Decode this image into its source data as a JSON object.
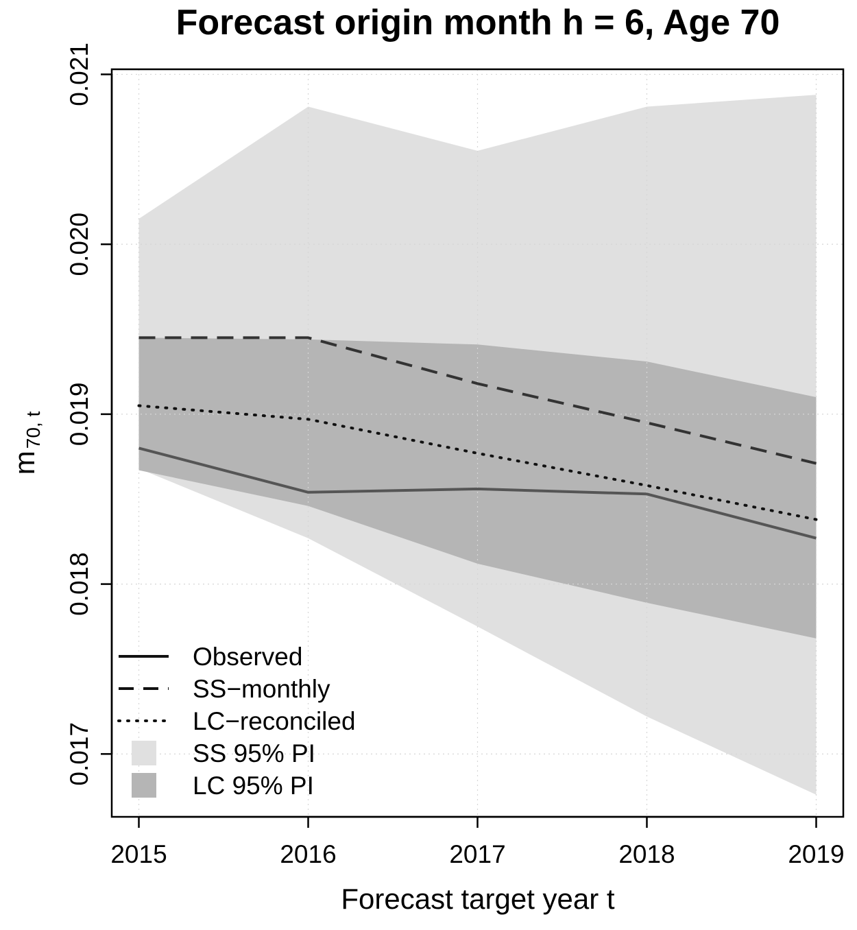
{
  "chart_data": {
    "type": "line",
    "title": "Forecast origin month h = 6, Age 70",
    "xlabel": "Forecast target year t",
    "ylabel": {
      "main": "m",
      "subscript": "70, t"
    },
    "x": [
      2015,
      2016,
      2017,
      2018,
      2019
    ],
    "x_tick_labels": [
      "2015",
      "2016",
      "2017",
      "2018",
      "2019"
    ],
    "xlim": [
      2014.84,
      2019.16
    ],
    "ylim": [
      0.01663,
      0.02103
    ],
    "y_ticks": [
      0.017,
      0.018,
      0.019,
      0.02,
      0.021
    ],
    "y_tick_labels": [
      "0.017",
      "0.018",
      "0.019",
      "0.020",
      "0.021"
    ],
    "grid": true,
    "legend_position": "bottom-left",
    "series": [
      {
        "name": "Observed",
        "style": "solid",
        "color": "#555555",
        "values": [
          0.0188,
          0.01854,
          0.01856,
          0.01853,
          0.01827
        ]
      },
      {
        "name": "SS−monthly",
        "style": "dashed",
        "color": "#333333",
        "values": [
          0.01945,
          0.01945,
          0.01918,
          0.01895,
          0.01871
        ]
      },
      {
        "name": "LC−reconciled",
        "style": "dotted",
        "color": "#111111",
        "values": [
          0.01905,
          0.01897,
          0.01877,
          0.01858,
          0.01838
        ]
      }
    ],
    "bands": [
      {
        "name": "SS 95% PI",
        "color": "#e0e0e0",
        "lower": [
          0.01868,
          0.01827,
          0.01775,
          0.01722,
          0.01676
        ],
        "upper": [
          0.02015,
          0.02081,
          0.02055,
          0.02081,
          0.02088
        ]
      },
      {
        "name": "LC 95% PI",
        "color": "#b5b5b5",
        "lower": [
          0.01867,
          0.01846,
          0.01812,
          0.01789,
          0.01768
        ],
        "upper": [
          0.01945,
          0.01944,
          0.01941,
          0.01931,
          0.0191
        ]
      }
    ],
    "legend": [
      {
        "label": "Observed",
        "kind": "line",
        "style": "solid"
      },
      {
        "label": "SS−monthly",
        "kind": "line",
        "style": "dashed"
      },
      {
        "label": "LC−reconciled",
        "kind": "line",
        "style": "dotted"
      },
      {
        "label": "SS 95% PI",
        "kind": "box",
        "color": "#e0e0e0"
      },
      {
        "label": "LC 95% PI",
        "kind": "box",
        "color": "#b5b5b5"
      }
    ]
  }
}
